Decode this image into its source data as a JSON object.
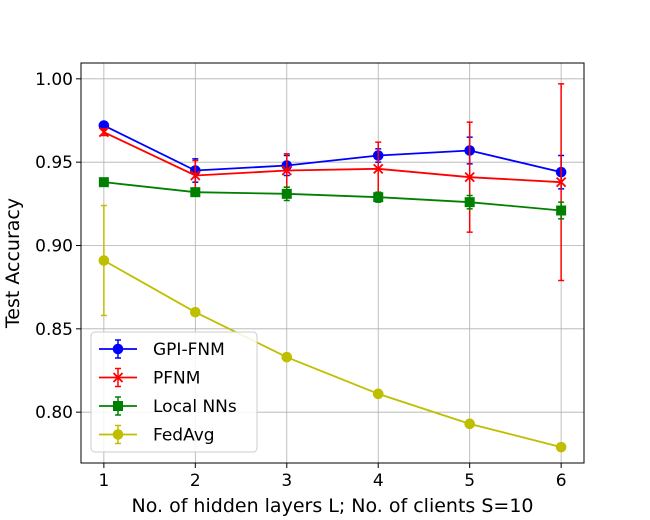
{
  "chart_data": {
    "type": "line",
    "xlabel": "No. of hidden layers L; No. of clients S=10",
    "ylabel": "Test Accuracy",
    "x": [
      1,
      2,
      3,
      4,
      5,
      6
    ],
    "xlim": [
      0.75,
      6.25
    ],
    "ylim": [
      0.7695,
      1.0095
    ],
    "xticks": [
      1,
      2,
      3,
      4,
      5,
      6
    ],
    "xtick_labels": [
      "1",
      "2",
      "3",
      "4",
      "5",
      "6"
    ],
    "yticks": [
      0.8,
      0.85,
      0.9,
      0.95,
      1.0
    ],
    "ytick_labels": [
      "0.80",
      "0.85",
      "0.90",
      "0.95",
      "1.00"
    ],
    "grid": true,
    "legend_position": "lower-left",
    "series": [
      {
        "name": "GPI-FNM",
        "color": "#0000ff",
        "marker": "circle",
        "values": [
          0.972,
          0.945,
          0.948,
          0.954,
          0.957,
          0.944
        ],
        "errors": [
          0.002,
          0.007,
          0.006,
          0.004,
          0.008,
          0.01
        ]
      },
      {
        "name": "PFNM",
        "color": "#ff0000",
        "marker": "x",
        "values": [
          0.968,
          0.942,
          0.945,
          0.946,
          0.941,
          0.938
        ],
        "errors": [
          0.002,
          0.009,
          0.01,
          0.016,
          0.033,
          0.059
        ]
      },
      {
        "name": "Local NNs",
        "color": "#008000",
        "marker": "square",
        "values": [
          0.938,
          0.932,
          0.931,
          0.929,
          0.926,
          0.921
        ],
        "errors": [
          0.001,
          0.002,
          0.004,
          0.003,
          0.004,
          0.005
        ]
      },
      {
        "name": "FedAvg",
        "color": "#bfbf00",
        "marker": "circle",
        "values": [
          0.891,
          0.86,
          0.833,
          0.811,
          0.793,
          0.779
        ],
        "errors": [
          0.033,
          0.001,
          0.001,
          0.001,
          0.001,
          0.001
        ]
      }
    ]
  }
}
